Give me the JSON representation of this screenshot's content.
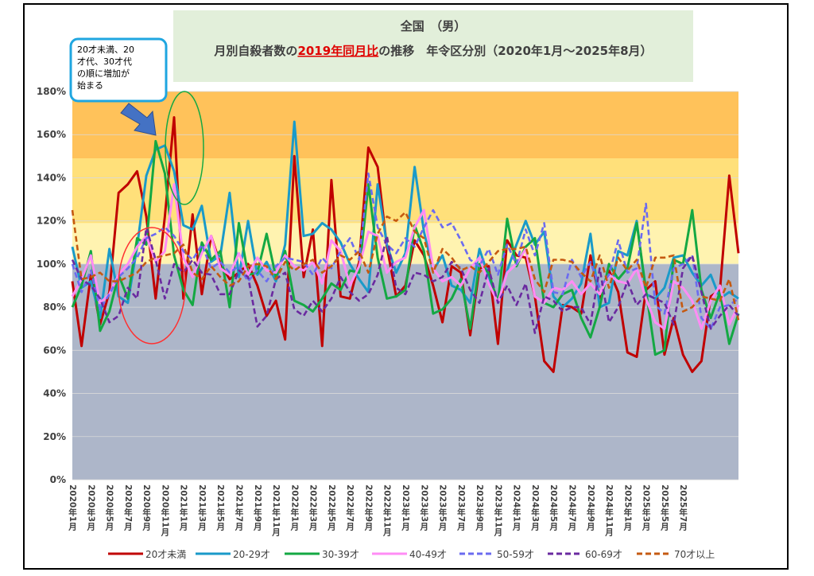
{
  "chart_data": {
    "type": "line",
    "title": {
      "line1": "全国　（男）",
      "line2_prefix": "月別自殺者数の",
      "line2_emph": "2019年同月比",
      "line2_suffix": "の推移　年令区分別（2020年1月～2025年8月）"
    },
    "annotation": "20才未満、20才代、30才代の順に増加が始まる",
    "annotation_lines": [
      "20才未満、20",
      "才代、30才代",
      "の順に増加が",
      "始まる"
    ],
    "ylim": [
      0,
      180
    ],
    "y_ticks": [
      0,
      20,
      40,
      60,
      80,
      100,
      120,
      140,
      160,
      180
    ],
    "y_tick_labels": [
      "0%",
      "20%",
      "40%",
      "60%",
      "80%",
      "100%",
      "120%",
      "140%",
      "160%",
      "180%"
    ],
    "bands": [
      {
        "from": 0,
        "to": 100,
        "color": "#adb6c9"
      },
      {
        "from": 100,
        "to": 119,
        "color": "#fff3b0"
      },
      {
        "from": 119,
        "to": 149,
        "color": "#ffe07a"
      },
      {
        "from": 149,
        "to": 180,
        "color": "#ffc25a"
      }
    ],
    "x_tick_labels": [
      "2020年1月",
      "2020年3月",
      "2020年5月",
      "2020年7月",
      "2020年9月",
      "2020年11月",
      "2021年1月",
      "2021年3月",
      "2021年5月",
      "2021年7月",
      "2021年9月",
      "2021年11月",
      "2022年1月",
      "2022年3月",
      "2022年5月",
      "2022年7月",
      "2022年9月",
      "2022年11月",
      "2023年1月",
      "2023年3月",
      "2023年5月",
      "2023年7月",
      "2023年9月",
      "2023年11月",
      "2024年1月",
      "2024年3月",
      "2024年5月",
      "2024年7月",
      "2024年9月",
      "2024年11月",
      "2025年1月",
      "2025年3月",
      "2025年5月",
      "2025年7月"
    ],
    "grid": true,
    "legend_position": "bottom",
    "series": [
      {
        "name": "20才未満",
        "color": "#c00000",
        "dash": "solid",
        "values": [
          92,
          62,
          95,
          72,
          87,
          133,
          137,
          143,
          122,
          84,
          122,
          168,
          84,
          123,
          86,
          113,
          100,
          93,
          96,
          100,
          90,
          76,
          83,
          65,
          150,
          94,
          116,
          62,
          139,
          85,
          84,
          101,
          154,
          145,
          108,
          85,
          90,
          111,
          104,
          90,
          73,
          99,
          96,
          67,
          98,
          99,
          63,
          111,
          104,
          103,
          85,
          55,
          50,
          81,
          80,
          77,
          104,
          84,
          97,
          87,
          59,
          57,
          88,
          92,
          58,
          75,
          58,
          50,
          55,
          85,
          88,
          141,
          105
        ]
      },
      {
        "name": "20-29才",
        "color": "#1a9ac9",
        "dash": "solid",
        "values": [
          108,
          89,
          92,
          75,
          107,
          85,
          82,
          108,
          141,
          153,
          155,
          143,
          118,
          116,
          127,
          101,
          104,
          133,
          94,
          120,
          95,
          101,
          92,
          109,
          166,
          113,
          114,
          119,
          116,
          110,
          100,
          93,
          87,
          137,
          109,
          96,
          105,
          145,
          115,
          97,
          104,
          90,
          88,
          82,
          107,
          94,
          82,
          97,
          109,
          120,
          109,
          115,
          85,
          80,
          84,
          91,
          114,
          80,
          82,
          106,
          104,
          120,
          86,
          84,
          89,
          103,
          104,
          96,
          90,
          95,
          84,
          87,
          84
        ]
      },
      {
        "name": "30-39才",
        "color": "#14a843",
        "dash": "solid",
        "values": [
          80,
          90,
          106,
          69,
          78,
          95,
          84,
          112,
          109,
          157,
          142,
          104,
          88,
          81,
          110,
          102,
          106,
          80,
          119,
          95,
          96,
          114,
          94,
          106,
          83,
          81,
          78,
          84,
          91,
          88,
          97,
          96,
          137,
          103,
          84,
          85,
          88,
          118,
          106,
          77,
          79,
          84,
          93,
          70,
          100,
          96,
          82,
          121,
          99,
          108,
          112,
          82,
          80,
          86,
          88,
          75,
          66,
          80,
          100,
          93,
          98,
          119,
          88,
          58,
          60,
          102,
          100,
          125,
          88,
          75,
          87,
          63,
          77
        ]
      },
      {
        "name": "40-49才",
        "color": "#ff8cf5",
        "dash": "solid",
        "values": [
          85,
          93,
          104,
          82,
          86,
          95,
          100,
          108,
          113,
          101,
          106,
          137,
          103,
          94,
          105,
          113,
          98,
          95,
          105,
          95,
          103,
          97,
          96,
          104,
          99,
          97,
          101,
          91,
          111,
          106,
          90,
          99,
          115,
          113,
          96,
          101,
          103,
          117,
          125,
          98,
          92,
          94,
          90,
          98,
          103,
          91,
          82,
          96,
          100,
          107,
          85,
          82,
          89,
          88,
          92,
          86,
          91,
          86,
          95,
          92,
          91,
          98,
          84,
          73,
          70,
          92,
          89,
          83,
          70,
          83,
          90,
          72,
          81
        ]
      },
      {
        "name": "50-59才",
        "color": "#6b6bf0",
        "dash": "dashed",
        "values": [
          100,
          87,
          97,
          79,
          86,
          94,
          98,
          103,
          112,
          114,
          117,
          113,
          106,
          102,
          109,
          98,
          101,
          96,
          99,
          92,
          97,
          92,
          99,
          103,
          102,
          101,
          95,
          103,
          98,
          106,
          112,
          102,
          142,
          117,
          109,
          105,
          112,
          108,
          117,
          125,
          117,
          119,
          111,
          102,
          99,
          107,
          95,
          109,
          100,
          116,
          104,
          119,
          87,
          86,
          102,
          94,
          101,
          89,
          95,
          111,
          96,
          98,
          128,
          81,
          77,
          98,
          100,
          104,
          75,
          70,
          80,
          81,
          84
        ]
      },
      {
        "name": "60-69才",
        "color": "#6a2aa0",
        "dash": "dashed",
        "values": [
          102,
          93,
          90,
          84,
          73,
          76,
          89,
          84,
          117,
          102,
          84,
          100,
          96,
          102,
          96,
          95,
          86,
          86,
          97,
          94,
          71,
          76,
          93,
          96,
          79,
          76,
          83,
          78,
          84,
          94,
          87,
          83,
          86,
          95,
          113,
          89,
          86,
          96,
          95,
          92,
          94,
          101,
          98,
          88,
          82,
          98,
          82,
          90,
          81,
          91,
          68,
          85,
          83,
          78,
          80,
          80,
          72,
          98,
          73,
          80,
          92,
          81,
          86,
          84,
          82,
          72,
          98,
          104,
          87,
          70,
          76,
          81,
          76
        ]
      },
      {
        "name": "70才以上",
        "color": "#c55a11",
        "dash": "dashed",
        "values": [
          125,
          93,
          94,
          96,
          92,
          92,
          94,
          96,
          101,
          103,
          104,
          105,
          109,
          96,
          93,
          99,
          94,
          90,
          92,
          99,
          100,
          99,
          93,
          101,
          97,
          100,
          102,
          96,
          99,
          104,
          102,
          106,
          96,
          114,
          122,
          120,
          124,
          115,
          112,
          96,
          107,
          103,
          97,
          99,
          96,
          101,
          106,
          107,
          107,
          108,
          93,
          87,
          102,
          102,
          101,
          96,
          92,
          104,
          89,
          103,
          97,
          102,
          89,
          103,
          103,
          104,
          78,
          80,
          85,
          84,
          83,
          93,
          74
        ]
      }
    ]
  }
}
